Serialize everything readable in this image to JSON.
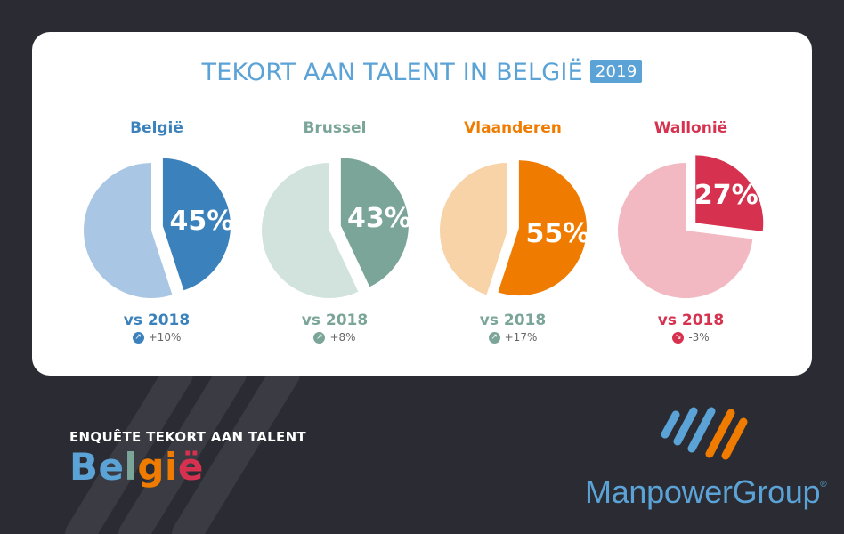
{
  "title": "TEKORT AAN TALENT IN BELGIË",
  "year": "2019",
  "chart_data": {
    "type": "pie",
    "title": "TEKORT AAN TALENT IN BELGIË",
    "charts": [
      {
        "name": "België",
        "value": 45,
        "label": "45%",
        "vs_label": "vs 2018",
        "change": "+10%",
        "direction": "up",
        "color": "#3b82bd",
        "rest_color": "#a9c6e4",
        "change_color": "#3b82bd"
      },
      {
        "name": "Brussel",
        "value": 43,
        "label": "43%",
        "vs_label": "vs 2018",
        "change": "+8%",
        "direction": "up",
        "color": "#7aa598",
        "rest_color": "#d2e3de",
        "change_color": "#7aa598"
      },
      {
        "name": "Vlaanderen",
        "value": 55,
        "label": "55%",
        "vs_label": "vs 2018",
        "change": "+17%",
        "direction": "up",
        "color": "#ef7c00",
        "rest_color": "#f8d3a8",
        "change_color": "#7aa598"
      },
      {
        "name": "Wallonië",
        "value": 27,
        "label": "27%",
        "vs_label": "vs 2018",
        "change": "-3%",
        "direction": "down",
        "color": "#d6324f",
        "rest_color": "#f2b9c2",
        "change_color": "#d6324f"
      }
    ]
  },
  "survey": {
    "subtitle": "ENQUÊTE TEKORT AAN TALENT",
    "country": "België"
  },
  "brand": {
    "name": "ManpowerGroup",
    "reg": "®"
  }
}
